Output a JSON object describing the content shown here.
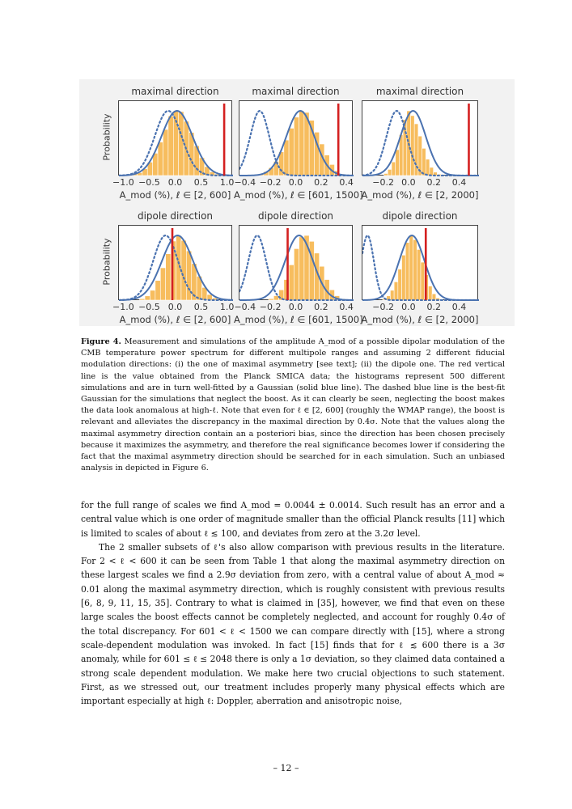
{
  "figure": {
    "ylabel": "Probability",
    "panels": [
      {
        "title": "maximal direction",
        "xlabel": "A_mod (%),  ℓ ∈ [2, 600]"
      },
      {
        "title": "maximal direction",
        "xlabel": "A_mod (%),  ℓ ∈ [601, 1500]"
      },
      {
        "title": "maximal direction",
        "xlabel": "A_mod (%),  ℓ ∈ [2, 2000]"
      },
      {
        "title": "dipole direction",
        "xlabel": "A_mod (%),  ℓ ∈ [2, 600]"
      },
      {
        "title": "dipole direction",
        "xlabel": "A_mod (%),  ℓ ∈ [601, 1500]"
      },
      {
        "title": "dipole direction",
        "xlabel": "A_mod (%),  ℓ ∈ [2, 2000]"
      }
    ],
    "colors": {
      "hist": "#f7bd5e",
      "gauss": "#4a72b0",
      "redline": "#d42020",
      "frame": "#444444"
    }
  },
  "chart_data": [
    {
      "type": "bar",
      "title": "maximal direction",
      "xlabel": "A_mod (%), ℓ ∈ [2, 600]",
      "ylabel": "Probability",
      "xlim": [
        -1.1,
        1.1
      ],
      "xticks": [
        -1.0,
        -0.5,
        0.0,
        0.5,
        1.0
      ],
      "tick_labels": [
        "−1.0",
        "−0.5",
        "0.0",
        "0.5",
        "1.0"
      ],
      "hist_edges_start": -0.85,
      "bin_width": 0.1,
      "hist_values": [
        2,
        4,
        9,
        18,
        30,
        45,
        62,
        80,
        87,
        86,
        73,
        58,
        40,
        24,
        12,
        5,
        2
      ],
      "gauss_fit": {
        "mu": 0.02,
        "sigma": 0.3
      },
      "dashed_fit": {
        "mu": -0.15,
        "sigma": 0.26
      },
      "measured_value": 0.93
    },
    {
      "type": "bar",
      "title": "maximal direction",
      "xlabel": "A_mod (%), ℓ ∈ [601, 1500]",
      "ylabel": "Probability",
      "xlim": [
        -0.45,
        0.45
      ],
      "xticks": [
        -0.4,
        -0.2,
        0.0,
        0.2,
        0.4
      ],
      "tick_labels": [
        "−0.4",
        "−0.2",
        "0.0",
        "0.2",
        "0.4"
      ],
      "hist_edges_start": -0.3,
      "bin_width": 0.04,
      "hist_values": [
        2,
        5,
        10,
        18,
        30,
        45,
        60,
        74,
        82,
        80,
        70,
        55,
        40,
        26,
        14,
        6,
        2
      ],
      "gauss_fit": {
        "mu": 0.03,
        "sigma": 0.11
      },
      "dashed_fit": {
        "mu": -0.29,
        "sigma": 0.075
      },
      "measured_value": 0.33
    },
    {
      "type": "bar",
      "title": "maximal direction",
      "xlabel": "A_mod (%), ℓ ∈ [2, 2000]",
      "ylabel": "Probability",
      "xlim": [
        -0.37,
        0.55
      ],
      "xticks": [
        -0.2,
        0.0,
        0.2,
        0.4
      ],
      "tick_labels": [
        "−0.2",
        "0.0",
        "0.2",
        "0.4"
      ],
      "hist_edges_start": -0.2,
      "bin_width": 0.03,
      "hist_values": [
        3,
        9,
        20,
        38,
        60,
        82,
        95,
        88,
        76,
        58,
        40,
        24,
        12,
        5,
        2
      ],
      "gauss_fit": {
        "mu": 0.03,
        "sigma": 0.1
      },
      "dashed_fit": {
        "mu": -0.1,
        "sigma": 0.08
      },
      "measured_value": 0.47
    },
    {
      "type": "bar",
      "title": "dipole direction",
      "xlabel": "A_mod (%), ℓ ∈ [2, 600]",
      "ylabel": "Probability",
      "xlim": [
        -1.1,
        1.1
      ],
      "xticks": [
        -1.0,
        -0.5,
        0.0,
        0.5,
        1.0
      ],
      "tick_labels": [
        "−1.0",
        "−0.5",
        "0.0",
        "0.5",
        "1.0"
      ],
      "hist_edges_start": -0.7,
      "bin_width": 0.1,
      "hist_values": [
        2,
        6,
        14,
        28,
        46,
        66,
        84,
        92,
        85,
        70,
        52,
        34,
        18,
        8,
        3
      ],
      "gauss_fit": {
        "mu": 0.03,
        "sigma": 0.3
      },
      "dashed_fit": {
        "mu": -0.2,
        "sigma": 0.24
      },
      "measured_value": -0.07
    },
    {
      "type": "bar",
      "title": "dipole direction",
      "xlabel": "A_mod (%), ℓ ∈ [601, 1500]",
      "ylabel": "Probability",
      "xlim": [
        -0.45,
        0.45
      ],
      "xticks": [
        -0.4,
        -0.2,
        0.0,
        0.2,
        0.4
      ],
      "tick_labels": [
        "−0.4",
        "−0.2",
        "0.0",
        "0.2",
        "0.4"
      ],
      "hist_edges_start": -0.22,
      "bin_width": 0.04,
      "hist_values": [
        2,
        6,
        14,
        28,
        48,
        70,
        86,
        88,
        80,
        64,
        46,
        28,
        14,
        6,
        2
      ],
      "gauss_fit": {
        "mu": 0.02,
        "sigma": 0.11
      },
      "dashed_fit": {
        "mu": -0.31,
        "sigma": 0.07
      },
      "measured_value": -0.07
    },
    {
      "type": "bar",
      "title": "dipole direction",
      "xlabel": "A_mod (%), ℓ ∈ [2, 2000]",
      "ylabel": "Probability",
      "xlim": [
        -0.37,
        0.55
      ],
      "xticks": [
        -0.2,
        0.0,
        0.2,
        0.4
      ],
      "tick_labels": [
        "−0.2",
        "0.0",
        "0.2",
        "0.4"
      ],
      "hist_edges_start": -0.21,
      "bin_width": 0.03,
      "hist_values": [
        2,
        6,
        14,
        26,
        44,
        64,
        82,
        92,
        86,
        72,
        54,
        36,
        20,
        9,
        3
      ],
      "gauss_fit": {
        "mu": 0.02,
        "sigma": 0.1
      },
      "dashed_fit": {
        "mu": -0.33,
        "sigma": 0.05
      },
      "measured_value": 0.13
    }
  ],
  "caption": {
    "label": "Figure 4",
    "text": "Measurement and simulations of the amplitude A_mod of a possible dipolar modulation of the CMB temperature power spectrum for different multipole ranges and assuming 2 different fiducial modulation directions: (i) the one of maximal asymmetry [see text]; (ii) the dipole one. The red vertical line is the value obtained from the Planck SMICA data; the histograms represent 500 different simulations and are in turn well-fitted by a Gaussian (solid blue line). The dashed blue line is the best-fit Gaussian for the simulations that neglect the boost. As it can clearly be seen, neglecting the boost makes the data look anomalous at high-ℓ. Note that even for ℓ ∈ [2, 600] (roughly the WMAP range), the boost is relevant and alleviates the discrepancy in the maximal direction by 0.4σ. Note that the values along the maximal asymmetry direction contain an a posteriori bias, since the direction has been chosen precisely because it maximizes the asymmetry, and therefore the real significance becomes lower if considering the fact that the maximal asymmetry direction should be searched for in each simulation. Such an unbiased analysis in depicted in Figure 6.",
    "ref_figure": "6"
  },
  "body": {
    "p1": "for the full range of scales we find A_mod = 0.0044 ± 0.0014. Such result has an error and a central value which is one order of magnitude smaller than the official Planck results [11] which is limited to scales of about ℓ ≲ 100, and deviates from zero at the 3.2σ level.",
    "p2": "The 2 smaller subsets of ℓ's also allow comparison with previous results in the literature. For 2 < ℓ < 600 it can be seen from Table 1 that along the maximal asymmetry direction on these largest scales we find a 2.9σ deviation from zero, with a central value of about A_mod ≈ 0.01 along the maximal asymmetry direction, which is roughly consistent with previous results [6, 8, 9, 11, 15, 35]. Contrary to what is claimed in [35], however, we find that even on these large scales the boost effects cannot be completely neglected, and account for roughly 0.4σ of the total discrepancy. For 601 < ℓ < 1500 we can compare directly with [15], where a strong scale-dependent modulation was invoked. In fact [15] finds that for ℓ ≲ 600 there is a 3σ anomaly, while for 601 ≤ ℓ ≤ 2048 there is only a 1σ deviation, so they claimed data contained a strong scale dependent modulation. We make here two crucial objections to such statement. First, as we stressed out, our treatment includes properly many physical effects which are important especially at high ℓ: Doppler, aberration and anisotropic noise,"
  },
  "page_number": "– 12 –"
}
